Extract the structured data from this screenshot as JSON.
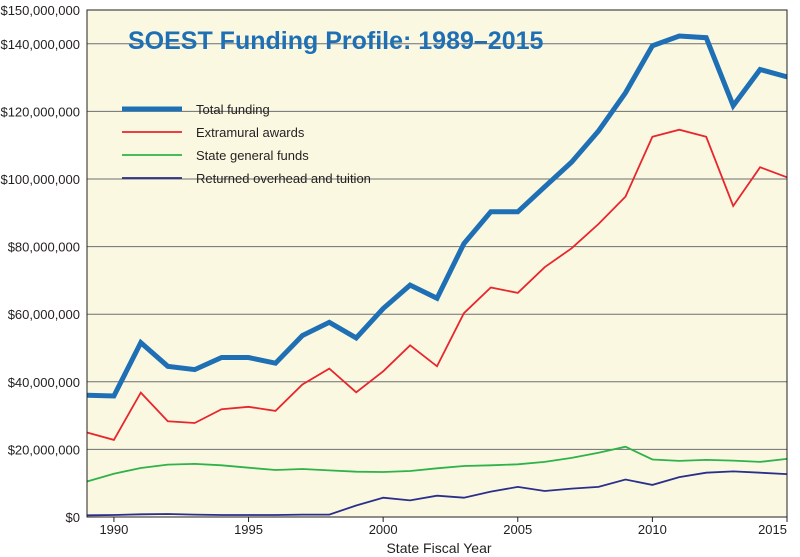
{
  "chart_data": {
    "type": "line",
    "title": "SOEST Funding Profile: 1989–2015",
    "xlabel": "State Fiscal Year",
    "ylabel": "",
    "xlim": [
      1989,
      2015
    ],
    "ylim": [
      0,
      150000000
    ],
    "x_ticks": [
      1990,
      1995,
      2000,
      2005,
      2010,
      2015
    ],
    "y_ticks": [
      0,
      20000000,
      40000000,
      60000000,
      80000000,
      100000000,
      120000000,
      140000000,
      150000000
    ],
    "y_tick_labels": [
      "$0",
      "$20,000,000",
      "$40,000,000",
      "$60,000,000",
      "$80,000,000",
      "$100,000,000",
      "$120,000,000",
      "$140,000,000",
      "$150,000,000"
    ],
    "grid": true,
    "legend_position": "upper-left",
    "x": [
      1989,
      1990,
      1991,
      1992,
      1993,
      1994,
      1995,
      1996,
      1997,
      1998,
      1999,
      2000,
      2001,
      2002,
      2003,
      2004,
      2005,
      2006,
      2007,
      2008,
      2009,
      2010,
      2011,
      2012,
      2013,
      2014,
      2015
    ],
    "series": [
      {
        "name": "Total funding",
        "color": "#1f6fb5",
        "values": [
          36000000,
          35800000,
          51600000,
          44600000,
          43600000,
          47200000,
          47200000,
          45500000,
          53700000,
          57600000,
          53000000,
          61700000,
          68600000,
          64700000,
          80900000,
          90300000,
          90300000,
          97700000,
          105000000,
          114200000,
          125500000,
          139400000,
          142300000,
          141800000,
          121700000,
          132400000,
          130200000
        ]
      },
      {
        "name": "Extramural awards",
        "color": "#e8262d",
        "values": [
          25000000,
          22800000,
          36800000,
          28300000,
          27800000,
          31900000,
          32600000,
          31400000,
          39200000,
          43900000,
          36900000,
          43100000,
          50800000,
          44600000,
          60300000,
          67900000,
          66300000,
          73900000,
          79500000,
          86700000,
          94800000,
          112500000,
          114600000,
          112500000,
          92000000,
          103500000,
          100500000
        ]
      },
      {
        "name": "State general funds",
        "color": "#2db34a",
        "values": [
          10500000,
          12800000,
          14500000,
          15500000,
          15700000,
          15300000,
          14600000,
          13900000,
          14200000,
          13800000,
          13400000,
          13300000,
          13600000,
          14400000,
          15100000,
          15300000,
          15600000,
          16300000,
          17500000,
          19000000,
          20800000,
          17000000,
          16600000,
          16900000,
          16700000,
          16300000,
          17200000
        ]
      },
      {
        "name": "Returned overhead and tuition",
        "color": "#2b2f8c",
        "values": [
          500000,
          600000,
          800000,
          900000,
          700000,
          600000,
          600000,
          600000,
          700000,
          700000,
          3400000,
          5700000,
          4900000,
          6300000,
          5700000,
          7500000,
          8900000,
          7700000,
          8400000,
          8900000,
          11100000,
          9500000,
          11800000,
          13100000,
          13500000,
          13100000,
          12700000
        ]
      }
    ]
  }
}
